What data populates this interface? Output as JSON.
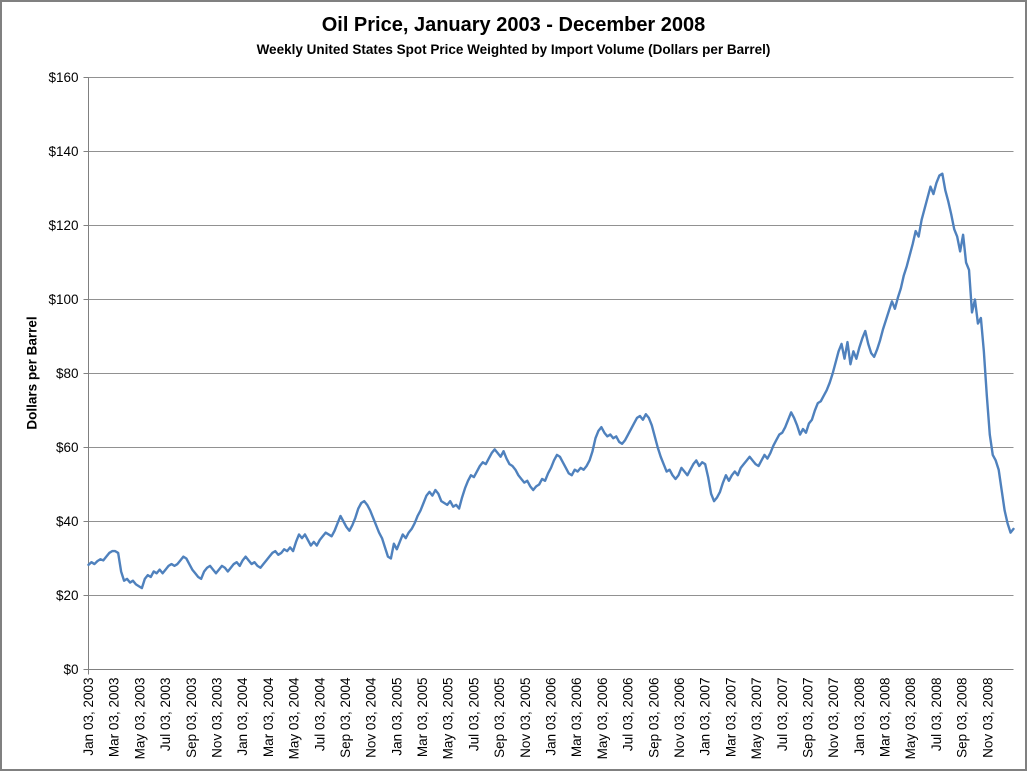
{
  "chart_data": {
    "type": "line",
    "title": "Oil Price, January 2003 - December 2008",
    "subtitle": "Weekly United States Spot Price Weighted by Import Volume (Dollars per Barrel)",
    "ylabel": "Dollars per Barrel",
    "xlabel": "",
    "ylim": [
      0,
      160
    ],
    "grid": true,
    "legend": "none",
    "y_tick_values": [
      0,
      20,
      40,
      60,
      80,
      100,
      120,
      140,
      160
    ],
    "y_tick_labels": [
      "$0",
      "$20",
      "$40",
      "$60",
      "$80",
      "$100",
      "$120",
      "$140",
      "$160"
    ],
    "x_months_span": 72,
    "x_tick_labels": [
      "Jan 03, 2003",
      "Mar 03, 2003",
      "May 03, 2003",
      "Jul 03, 2003",
      "Sep 03, 2003",
      "Nov 03, 2003",
      "Jan 03, 2004",
      "Mar 03, 2004",
      "May 03, 2004",
      "Jul 03, 2004",
      "Sep 03, 2004",
      "Nov 03, 2004",
      "Jan 03, 2005",
      "Mar 03, 2005",
      "May 03, 2005",
      "Jul 03, 2005",
      "Sep 03, 2005",
      "Nov 03, 2005",
      "Jan 03, 2006",
      "Mar 03, 2006",
      "May 03, 2006",
      "Jul 03, 2006",
      "Sep 03, 2006",
      "Nov 03, 2006",
      "Jan 03, 2007",
      "Mar 03, 2007",
      "May 03, 2007",
      "Jul 03, 2007",
      "Sep 03, 2007",
      "Nov 03, 2007",
      "Jan 03, 2008",
      "Mar 03, 2008",
      "May 03, 2008",
      "Jul 03, 2008",
      "Sep 03, 2008",
      "Nov 03, 2008"
    ],
    "colors": {
      "line": "#4F81BD",
      "grid": "#919191",
      "axis": "#808080",
      "border": "#808080",
      "text": "#000000",
      "background": "#ffffff"
    },
    "series": [
      {
        "name": "Oil Price",
        "color": "#4F81BD",
        "values": [
          28.3,
          29.0,
          28.5,
          29.3,
          29.8,
          29.5,
          30.5,
          31.5,
          32.0,
          32.0,
          31.5,
          26.5,
          24.0,
          24.5,
          23.5,
          24.0,
          23.0,
          22.5,
          22.0,
          24.5,
          25.5,
          25.0,
          26.5,
          26.0,
          27.0,
          26.0,
          27.0,
          28.0,
          28.5,
          28.0,
          28.5,
          29.5,
          30.5,
          30.0,
          28.5,
          27.0,
          26.0,
          25.0,
          24.5,
          26.5,
          27.5,
          28.0,
          27.0,
          26.0,
          27.0,
          28.0,
          27.5,
          26.5,
          27.5,
          28.5,
          29.0,
          28.0,
          29.5,
          30.5,
          29.5,
          28.5,
          29.0,
          28.0,
          27.5,
          28.5,
          29.5,
          30.5,
          31.5,
          32.0,
          31.0,
          31.5,
          32.5,
          32.0,
          33.0,
          32.0,
          34.5,
          36.5,
          35.5,
          36.5,
          35.0,
          33.5,
          34.5,
          33.5,
          35.0,
          36.0,
          37.0,
          36.5,
          36.0,
          37.5,
          39.5,
          41.5,
          40.0,
          38.5,
          37.5,
          39.0,
          41.0,
          43.5,
          45.0,
          45.5,
          44.5,
          43.0,
          41.0,
          39.0,
          37.0,
          35.5,
          33.0,
          30.5,
          30.0,
          34.0,
          32.5,
          34.5,
          36.5,
          35.5,
          37.0,
          38.0,
          39.5,
          41.5,
          43.0,
          45.0,
          47.0,
          48.0,
          47.0,
          48.5,
          47.5,
          45.5,
          45.0,
          44.5,
          45.5,
          44.0,
          44.5,
          43.5,
          46.5,
          49.0,
          51.0,
          52.5,
          52.0,
          53.5,
          55.0,
          56.0,
          55.5,
          57.0,
          58.5,
          59.5,
          58.5,
          57.5,
          59.0,
          57.0,
          55.5,
          55.0,
          54.0,
          52.5,
          51.5,
          50.5,
          51.0,
          49.5,
          48.5,
          49.5,
          50.0,
          51.5,
          51.0,
          53.0,
          54.5,
          56.5,
          58.0,
          57.5,
          56.0,
          54.5,
          53.0,
          52.5,
          54.0,
          53.5,
          54.5,
          54.0,
          55.0,
          56.5,
          59.0,
          62.5,
          64.5,
          65.5,
          64.0,
          63.0,
          63.5,
          62.5,
          63.0,
          61.5,
          61.0,
          62.0,
          63.5,
          65.0,
          66.5,
          68.0,
          68.5,
          67.5,
          69.0,
          68.0,
          66.0,
          63.0,
          60.0,
          57.5,
          55.5,
          53.5,
          54.0,
          52.5,
          51.5,
          52.5,
          54.5,
          53.5,
          52.5,
          54.0,
          55.5,
          56.5,
          55.0,
          56.0,
          55.5,
          52.0,
          47.5,
          45.5,
          46.5,
          48.0,
          50.5,
          52.5,
          51.0,
          52.5,
          53.5,
          52.5,
          54.5,
          55.5,
          56.5,
          57.5,
          56.5,
          55.5,
          55.0,
          56.5,
          58.0,
          57.0,
          58.5,
          60.5,
          62.0,
          63.5,
          64.0,
          65.5,
          67.5,
          69.5,
          68.0,
          66.0,
          63.5,
          65.0,
          64.0,
          66.5,
          67.5,
          70.0,
          72.0,
          72.5,
          74.0,
          75.5,
          77.5,
          80.0,
          83.0,
          86.0,
          88.0,
          84.0,
          88.5,
          82.5,
          86.0,
          84.0,
          87.0,
          89.5,
          91.5,
          88.0,
          85.5,
          84.5,
          86.5,
          89.0,
          92.0,
          94.5,
          97.0,
          99.5,
          97.5,
          100.5,
          103.0,
          106.5,
          109.0,
          112.0,
          115.0,
          118.5,
          117.0,
          121.5,
          124.5,
          127.5,
          130.5,
          128.5,
          131.5,
          133.5,
          134.0,
          129.5,
          126.5,
          123.0,
          119.0,
          117.0,
          113.0,
          117.5,
          110.0,
          108.0,
          96.5,
          100.0,
          93.5,
          95.0,
          86.0,
          74.0,
          63.5,
          58.0,
          56.5,
          54.0,
          48.5,
          43.0,
          39.5,
          37.0,
          38.0
        ]
      }
    ]
  }
}
